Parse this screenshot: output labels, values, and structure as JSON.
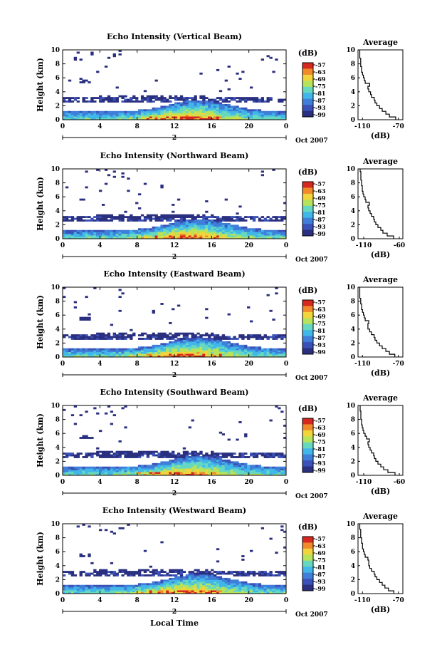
{
  "figure": {
    "xlabel_bottom": "Local Time"
  },
  "colors": {
    "scale": [
      "#2a2f7f",
      "#3a52b8",
      "#3f7fd9",
      "#40b7e8",
      "#67d8c0",
      "#b7e35a",
      "#f2d43c",
      "#f08a2b",
      "#d7281f"
    ],
    "line": "#000000"
  },
  "chart_data": [
    {
      "type": "heatmap",
      "title": "Echo Intensity (Vertical Beam)",
      "ylabel": "Height (km)",
      "xticks": [
        "0",
        "4",
        "8",
        "12",
        "16",
        "20",
        "0"
      ],
      "yticks": [
        "0",
        "2",
        "4",
        "6",
        "8",
        "10"
      ],
      "xlim": [
        0,
        24
      ],
      "ylim": [
        0,
        10
      ],
      "date_marker": "2",
      "date_label": "Oct 2007",
      "colorbar": {
        "label": "(dB)",
        "ticks": [
          "-57",
          "-63",
          "-69",
          "-75",
          "-81",
          "-87",
          "-93",
          "-99"
        ]
      },
      "profile": {
        "title": "Average",
        "xlabel": "(dB)",
        "xticks": [
          "-110",
          "-70"
        ],
        "xlim": [
          -115,
          -65
        ],
        "heights": [
          0.2,
          0.6,
          1.0,
          1.4,
          1.8,
          2.2,
          2.6,
          3.0,
          3.4,
          3.8,
          4.2,
          4.6,
          5.0,
          5.4,
          5.8,
          6.2,
          6.6,
          7.0,
          7.4,
          7.8,
          8.2,
          8.6,
          9.0,
          9.4,
          9.8
        ],
        "values": [
          -73,
          -80,
          -84,
          -88,
          -91,
          -94,
          -96,
          -97,
          -100,
          -101,
          -103,
          -104,
          -102,
          -107,
          -108,
          -109,
          -110,
          -111,
          -111,
          -112,
          -112,
          -112,
          -113,
          -113,
          -113
        ]
      }
    },
    {
      "type": "heatmap",
      "title": "Echo Intensity (Northward Beam)",
      "ylabel": "Height (km)",
      "xticks": [
        "0",
        "4",
        "8",
        "12",
        "16",
        "20",
        "0"
      ],
      "yticks": [
        "0",
        "2",
        "4",
        "6",
        "8",
        "10"
      ],
      "xlim": [
        0,
        24
      ],
      "ylim": [
        0,
        10
      ],
      "date_marker": "2",
      "date_label": "Oct 2007",
      "colorbar": {
        "label": "(dB)",
        "ticks": [
          "-57",
          "-63",
          "-69",
          "-75",
          "-81",
          "-87",
          "-93",
          "-99"
        ]
      },
      "profile": {
        "title": "Average",
        "xlabel": "(dB)",
        "xticks": [
          "-110",
          "-60"
        ],
        "xlim": [
          -118,
          -55
        ],
        "heights": [
          0.2,
          0.6,
          1.0,
          1.4,
          1.8,
          2.2,
          2.6,
          3.0,
          3.4,
          3.8,
          4.2,
          4.6,
          5.0,
          5.4,
          5.8,
          6.2,
          6.6,
          7.0,
          7.4,
          7.8,
          8.2,
          8.6,
          9.0,
          9.4,
          9.8
        ],
        "values": [
          -68,
          -77,
          -83,
          -86,
          -90,
          -93,
          -95,
          -96,
          -99,
          -101,
          -103,
          -104,
          -102,
          -107,
          -108,
          -110,
          -111,
          -112,
          -112,
          -113,
          -113,
          -114,
          -114,
          -114,
          -115
        ]
      }
    },
    {
      "type": "heatmap",
      "title": "Echo Intensity (Eastward Beam)",
      "ylabel": "Height (km)",
      "xticks": [
        "0",
        "4",
        "8",
        "12",
        "16",
        "20",
        "0"
      ],
      "yticks": [
        "0",
        "2",
        "4",
        "6",
        "8",
        "10"
      ],
      "xlim": [
        0,
        24
      ],
      "ylim": [
        0,
        10
      ],
      "date_marker": "2",
      "date_label": "Oct 2007",
      "colorbar": {
        "label": "(dB)",
        "ticks": [
          "-57",
          "-63",
          "-69",
          "-75",
          "-81",
          "-87",
          "-93",
          "-99"
        ]
      },
      "profile": {
        "title": "Average",
        "xlabel": "(dB)",
        "xticks": [
          "-110",
          "-70"
        ],
        "xlim": [
          -115,
          -65
        ],
        "heights": [
          0.2,
          0.6,
          1.0,
          1.4,
          1.8,
          2.2,
          2.6,
          3.0,
          3.4,
          3.8,
          4.2,
          4.6,
          5.0,
          5.4,
          5.8,
          6.2,
          6.6,
          7.0,
          7.4,
          7.8,
          8.2,
          8.6,
          9.0,
          9.4,
          9.8
        ],
        "values": [
          -74,
          -80,
          -84,
          -88,
          -91,
          -94,
          -96,
          -97,
          -100,
          -102,
          -104,
          -104,
          -103,
          -107,
          -108,
          -109,
          -110,
          -111,
          -111,
          -112,
          -112,
          -113,
          -113,
          -113,
          -113
        ]
      }
    },
    {
      "type": "heatmap",
      "title": "Echo Intensity (Southward Beam)",
      "ylabel": "Height (km)",
      "xticks": [
        "0",
        "4",
        "8",
        "12",
        "16",
        "20",
        "0"
      ],
      "yticks": [
        "0",
        "2",
        "4",
        "6",
        "8",
        "10"
      ],
      "xlim": [
        0,
        24
      ],
      "ylim": [
        0,
        10
      ],
      "date_marker": "2",
      "date_label": "Oct 2007",
      "colorbar": {
        "label": "(dB)",
        "ticks": [
          "-57",
          "-63",
          "-69",
          "-75",
          "-81",
          "-87",
          "-93",
          "-99"
        ]
      },
      "profile": {
        "title": "Average",
        "xlabel": "(dB)",
        "xticks": [
          "-110",
          "-60"
        ],
        "xlim": [
          -118,
          -55
        ],
        "heights": [
          0.2,
          0.6,
          1.0,
          1.4,
          1.8,
          2.2,
          2.6,
          3.0,
          3.4,
          3.8,
          4.2,
          4.6,
          5.0,
          5.4,
          5.8,
          6.2,
          6.6,
          7.0,
          7.4,
          7.8,
          8.2,
          8.6,
          9.0,
          9.4,
          9.8
        ],
        "values": [
          -66,
          -76,
          -82,
          -86,
          -90,
          -93,
          -95,
          -96,
          -99,
          -101,
          -103,
          -104,
          -102,
          -106,
          -108,
          -110,
          -111,
          -112,
          -113,
          -113,
          -114,
          -114,
          -114,
          -115,
          -115
        ]
      }
    },
    {
      "type": "heatmap",
      "title": "Echo Intensity (Westward Beam)",
      "ylabel": "Height (km)",
      "xticks": [
        "0",
        "4",
        "8",
        "12",
        "16",
        "20",
        "0"
      ],
      "yticks": [
        "0",
        "2",
        "4",
        "6",
        "8",
        "10"
      ],
      "xlim": [
        0,
        24
      ],
      "ylim": [
        0,
        10
      ],
      "date_marker": "2",
      "date_label": "Oct 2007",
      "colorbar": {
        "label": "(dB)",
        "ticks": [
          "-57",
          "-63",
          "-69",
          "-75",
          "-81",
          "-87",
          "-93",
          "-99"
        ]
      },
      "profile": {
        "title": "Average",
        "xlabel": "(dB)",
        "xticks": [
          "-110",
          "-70"
        ],
        "xlim": [
          -115,
          -65
        ],
        "heights": [
          0.2,
          0.6,
          1.0,
          1.4,
          1.8,
          2.2,
          2.6,
          3.0,
          3.4,
          3.8,
          4.2,
          4.6,
          5.0,
          5.4,
          5.8,
          6.2,
          6.6,
          7.0,
          7.4,
          7.8,
          8.2,
          8.6,
          9.0,
          9.4,
          9.8
        ],
        "values": [
          -75,
          -81,
          -85,
          -88,
          -91,
          -94,
          -96,
          -97,
          -100,
          -102,
          -103,
          -103,
          -104,
          -107,
          -108,
          -109,
          -110,
          -110,
          -111,
          -111,
          -112,
          -112,
          -112,
          -113,
          -113
        ]
      }
    }
  ]
}
